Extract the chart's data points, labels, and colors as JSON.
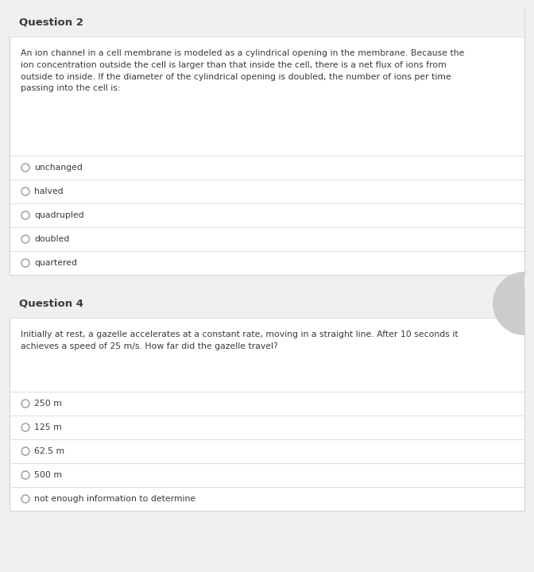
{
  "bg_color": "#f0f0f0",
  "card_bg": "#ffffff",
  "card_border": "#d8d8d8",
  "header_bg": "#f0f0f0",
  "separator_color": "#e0e0e0",
  "text_color": "#3a3a3a",
  "radio_color": "#999999",
  "question1_title": "Question 2",
  "question1_body": "An ion channel in a cell membrane is modeled as a cylindrical opening in the membrane. Because the\nion concentration outside the cell is larger than that inside the cell, there is a net flux of ions from\noutside to inside. If the diameter of the cylindrical opening is doubled, the number of ions per time\npassing into the cell is:",
  "question1_options": [
    "unchanged",
    "halved",
    "quadrupled",
    "doubled",
    "quartered"
  ],
  "question2_title": "Question 4",
  "question2_body": "Initially at rest, a gazelle accelerates at a constant rate, moving in a straight line. After 10 seconds it\nachieves a speed of 25 m/s. How far did the gazelle travel?",
  "question2_options": [
    "250 m",
    "125 m",
    "62.5 m",
    "500 m",
    "not enough information to determine"
  ],
  "fig_width": 6.72,
  "fig_height": 7.2,
  "dpi": 100,
  "circle_deco_color": "#cccccc"
}
